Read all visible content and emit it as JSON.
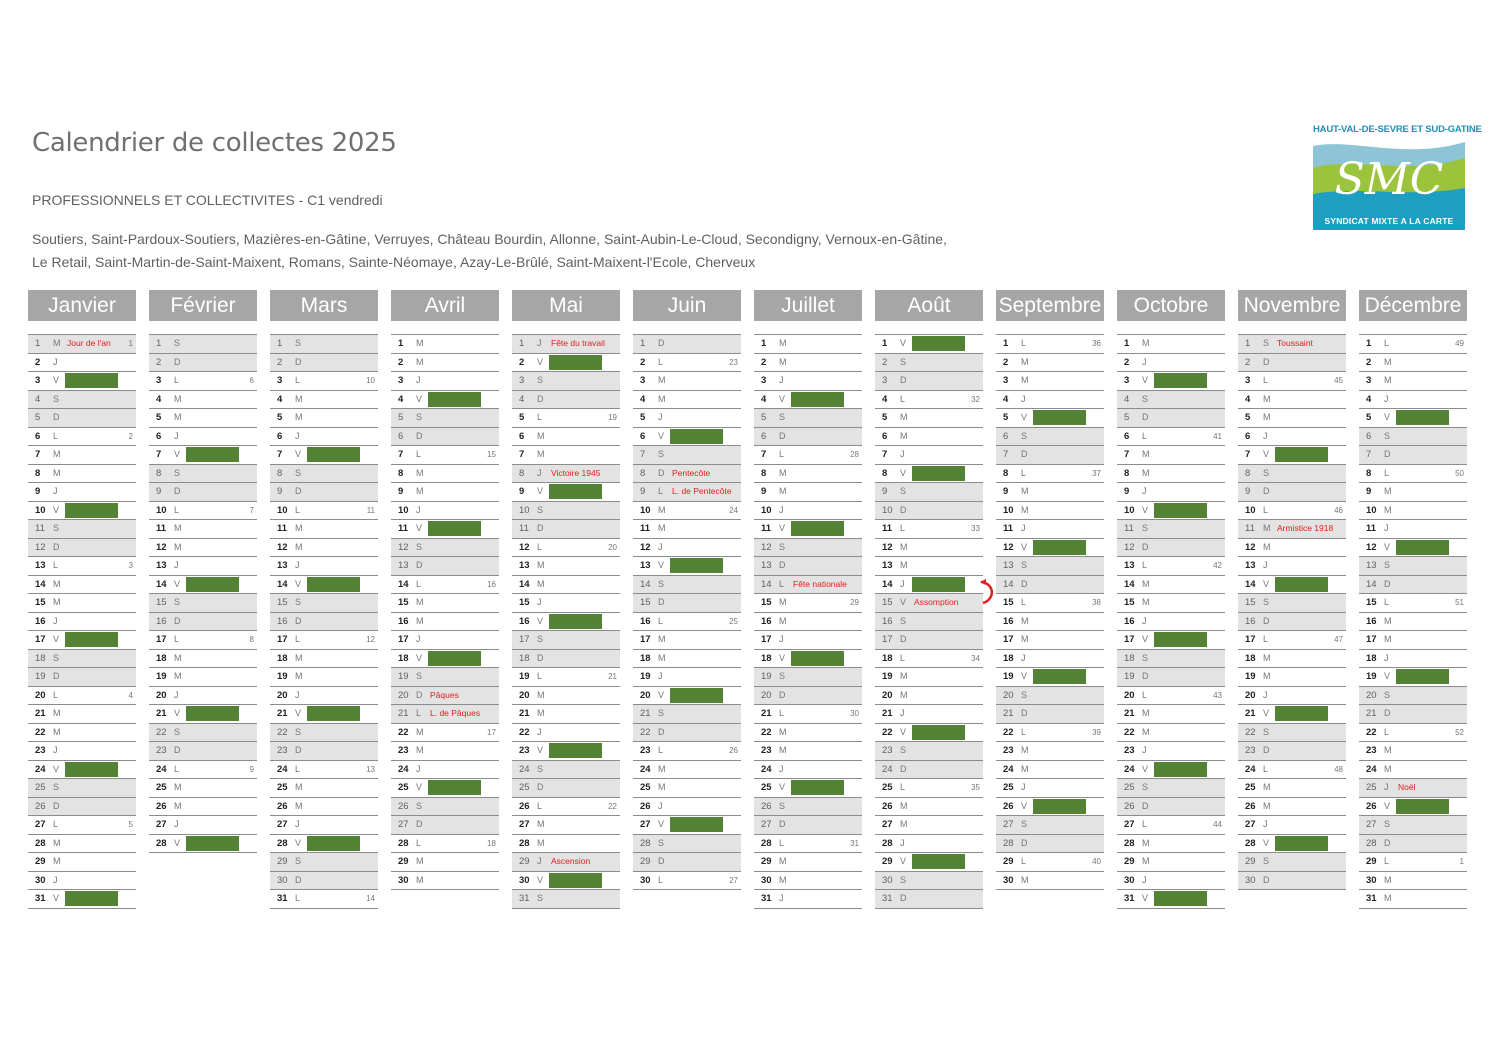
{
  "title": "Calendrier de collectes 2025",
  "subtitle": "PROFESSIONNELS ET COLLECTIVITES - C1 vendredi",
  "towns_line1": "Soutiers, Saint-Pardoux-Soutiers, Mazières-en-Gâtine, Verruyes, Château Bourdin, Allonne, Saint-Aubin-Le-Cloud, Secondigny, Vernoux-en-Gâtine,",
  "towns_line2": "Le Retail, Saint-Martin-de-Saint-Maixent, Romans, Sainte-Néomaye, Azay-Le-Brûlé, Saint-Maixent-l'Ecole, Cherveux",
  "logo": {
    "top_text": "HAUT-VAL-DE-SEVRE ET SUD-GATINE",
    "brand": "SMC",
    "bottom_text": "SYNDICAT MIXTE A LA CARTE"
  },
  "colors": {
    "collection": "#548235",
    "holiday_text": "#e0201e",
    "header_bg": "#a6a6a6",
    "weekend_bg": "#e3e3e3"
  },
  "year": 2025,
  "collection_weekday": "V",
  "weekday_letters": [
    "D",
    "L",
    "M",
    "M",
    "J",
    "V",
    "S"
  ],
  "months": [
    {
      "name": "Janvier",
      "days": 31,
      "start_weekday": 3
    },
    {
      "name": "Février",
      "days": 28,
      "start_weekday": 6
    },
    {
      "name": "Mars",
      "days": 31,
      "start_weekday": 6
    },
    {
      "name": "Avril",
      "days": 30,
      "start_weekday": 2
    },
    {
      "name": "Mai",
      "days": 31,
      "start_weekday": 4
    },
    {
      "name": "Juin",
      "days": 30,
      "start_weekday": 0
    },
    {
      "name": "Juillet",
      "days": 31,
      "start_weekday": 2
    },
    {
      "name": "Août",
      "days": 31,
      "start_weekday": 5
    },
    {
      "name": "Septembre",
      "days": 30,
      "start_weekday": 1
    },
    {
      "name": "Octobre",
      "days": 31,
      "start_weekday": 3
    },
    {
      "name": "Novembre",
      "days": 30,
      "start_weekday": 6
    },
    {
      "name": "Décembre",
      "days": 31,
      "start_weekday": 1
    }
  ],
  "holidays": [
    {
      "month": 1,
      "day": 1,
      "label": "Jour de l'an"
    },
    {
      "month": 4,
      "day": 20,
      "label": "Pâques"
    },
    {
      "month": 4,
      "day": 21,
      "label": "L. de Pâques"
    },
    {
      "month": 5,
      "day": 1,
      "label": "Fête du travail"
    },
    {
      "month": 5,
      "day": 8,
      "label": "Victoire 1945"
    },
    {
      "month": 5,
      "day": 29,
      "label": "Ascension"
    },
    {
      "month": 6,
      "day": 8,
      "label": "Pentecôte"
    },
    {
      "month": 6,
      "day": 9,
      "label": "L. de Pentecôte"
    },
    {
      "month": 7,
      "day": 14,
      "label": "Fête nationale"
    },
    {
      "month": 8,
      "day": 15,
      "label": "Assomption"
    },
    {
      "month": 11,
      "day": 1,
      "label": "Toussaint"
    },
    {
      "month": 11,
      "day": 11,
      "label": "Armistice 1918"
    },
    {
      "month": 12,
      "day": 25,
      "label": "Noël"
    }
  ],
  "shifted_collections": [
    {
      "from_month": 8,
      "from_day": 15,
      "to_month": 8,
      "to_day": 14
    }
  ],
  "week_numbers": [
    {
      "month": 1,
      "day": 1,
      "week": "1"
    },
    {
      "month": 1,
      "day": 6,
      "week": "2"
    },
    {
      "month": 1,
      "day": 13,
      "week": "3"
    },
    {
      "month": 1,
      "day": 20,
      "week": "4"
    },
    {
      "month": 1,
      "day": 27,
      "week": "5"
    },
    {
      "month": 2,
      "day": 3,
      "week": "6"
    },
    {
      "month": 2,
      "day": 10,
      "week": "7"
    },
    {
      "month": 2,
      "day": 17,
      "week": "8"
    },
    {
      "month": 2,
      "day": 24,
      "week": "9"
    },
    {
      "month": 3,
      "day": 3,
      "week": "10"
    },
    {
      "month": 3,
      "day": 10,
      "week": "11"
    },
    {
      "month": 3,
      "day": 17,
      "week": "12"
    },
    {
      "month": 3,
      "day": 24,
      "week": "13"
    },
    {
      "month": 3,
      "day": 31,
      "week": "14"
    },
    {
      "month": 4,
      "day": 7,
      "week": "15"
    },
    {
      "month": 4,
      "day": 14,
      "week": "16"
    },
    {
      "month": 4,
      "day": 22,
      "week": "17"
    },
    {
      "month": 4,
      "day": 28,
      "week": "18"
    },
    {
      "month": 5,
      "day": 5,
      "week": "19"
    },
    {
      "month": 5,
      "day": 12,
      "week": "20"
    },
    {
      "month": 5,
      "day": 19,
      "week": "21"
    },
    {
      "month": 5,
      "day": 26,
      "week": "22"
    },
    {
      "month": 6,
      "day": 2,
      "week": "23"
    },
    {
      "month": 6,
      "day": 10,
      "week": "24"
    },
    {
      "month": 6,
      "day": 16,
      "week": "25"
    },
    {
      "month": 6,
      "day": 23,
      "week": "26"
    },
    {
      "month": 6,
      "day": 30,
      "week": "27"
    },
    {
      "month": 7,
      "day": 7,
      "week": "28"
    },
    {
      "month": 7,
      "day": 15,
      "week": "29"
    },
    {
      "month": 7,
      "day": 21,
      "week": "30"
    },
    {
      "month": 7,
      "day": 28,
      "week": "31"
    },
    {
      "month": 8,
      "day": 4,
      "week": "32"
    },
    {
      "month": 8,
      "day": 11,
      "week": "33"
    },
    {
      "month": 8,
      "day": 18,
      "week": "34"
    },
    {
      "month": 8,
      "day": 25,
      "week": "35"
    },
    {
      "month": 9,
      "day": 1,
      "week": "36"
    },
    {
      "month": 9,
      "day": 8,
      "week": "37"
    },
    {
      "month": 9,
      "day": 15,
      "week": "38"
    },
    {
      "month": 9,
      "day": 22,
      "week": "39"
    },
    {
      "month": 9,
      "day": 29,
      "week": "40"
    },
    {
      "month": 10,
      "day": 6,
      "week": "41"
    },
    {
      "month": 10,
      "day": 13,
      "week": "42"
    },
    {
      "month": 10,
      "day": 20,
      "week": "43"
    },
    {
      "month": 10,
      "day": 27,
      "week": "44"
    },
    {
      "month": 11,
      "day": 3,
      "week": "45"
    },
    {
      "month": 11,
      "day": 10,
      "week": "46"
    },
    {
      "month": 11,
      "day": 17,
      "week": "47"
    },
    {
      "month": 11,
      "day": 24,
      "week": "48"
    },
    {
      "month": 12,
      "day": 1,
      "week": "49"
    },
    {
      "month": 12,
      "day": 8,
      "week": "50"
    },
    {
      "month": 12,
      "day": 15,
      "week": "51"
    },
    {
      "month": 12,
      "day": 22,
      "week": "52"
    },
    {
      "month": 12,
      "day": 29,
      "week": "1"
    }
  ]
}
